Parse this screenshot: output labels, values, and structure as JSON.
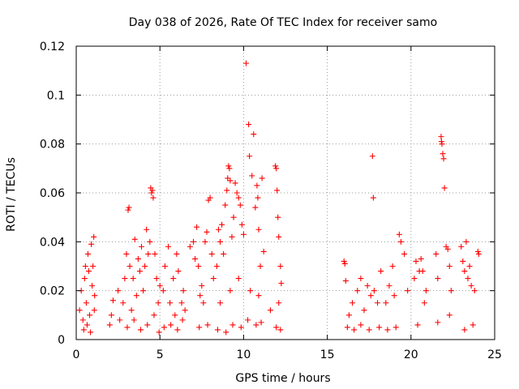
{
  "chart_data": {
    "type": "scatter",
    "title": "Day 038 of 2026, Rate Of TEC Index for receiver samo",
    "xlabel": "GPS time / hours",
    "ylabel": "ROTI / TECUs",
    "xlim": [
      0,
      25
    ],
    "ylim": [
      0,
      0.12
    ],
    "xticks": [
      "0",
      "5",
      "10",
      "15",
      "20",
      "25"
    ],
    "yticks": [
      "0",
      "0.02",
      "0.04",
      "0.06",
      "0.08",
      "0.1",
      "0.12"
    ],
    "grid": true,
    "marker": "plus",
    "color": "#ff0000",
    "series": [
      {
        "points": [
          [
            0.2,
            0.012
          ],
          [
            0.3,
            0.02
          ],
          [
            0.4,
            0.008
          ],
          [
            0.5,
            0.025
          ],
          [
            0.6,
            0.015
          ],
          [
            0.7,
            0.035
          ],
          [
            0.8,
            0.01
          ],
          [
            0.9,
            0.039
          ],
          [
            1.0,
            0.03
          ],
          [
            1.05,
            0.042
          ],
          [
            1.1,
            0.018
          ],
          [
            0.45,
            0.004
          ],
          [
            0.65,
            0.006
          ],
          [
            0.85,
            0.003
          ],
          [
            0.55,
            0.03
          ],
          [
            0.75,
            0.028
          ],
          [
            0.95,
            0.022
          ],
          [
            1.08,
            0.012
          ],
          [
            2.0,
            0.006
          ],
          [
            2.1,
            0.01
          ],
          [
            2.2,
            0.016
          ],
          [
            2.5,
            0.02
          ],
          [
            2.6,
            0.008
          ],
          [
            2.8,
            0.015
          ],
          [
            2.9,
            0.025
          ],
          [
            3.0,
            0.035
          ],
          [
            3.1,
            0.053
          ],
          [
            3.15,
            0.054
          ],
          [
            3.2,
            0.03
          ],
          [
            3.3,
            0.012
          ],
          [
            3.4,
            0.025
          ],
          [
            3.5,
            0.041
          ],
          [
            3.6,
            0.018
          ],
          [
            3.7,
            0.033
          ],
          [
            3.8,
            0.028
          ],
          [
            3.9,
            0.038
          ],
          [
            4.0,
            0.02
          ],
          [
            4.1,
            0.03
          ],
          [
            4.2,
            0.045
          ],
          [
            4.3,
            0.035
          ],
          [
            4.4,
            0.04
          ],
          [
            4.45,
            0.062
          ],
          [
            4.5,
            0.06
          ],
          [
            4.55,
            0.061
          ],
          [
            4.6,
            0.058
          ],
          [
            4.7,
            0.035
          ],
          [
            4.8,
            0.025
          ],
          [
            4.9,
            0.015
          ],
          [
            5.0,
            0.022
          ],
          [
            3.05,
            0.005
          ],
          [
            3.45,
            0.008
          ],
          [
            3.85,
            0.004
          ],
          [
            4.25,
            0.006
          ],
          [
            4.65,
            0.01
          ],
          [
            4.95,
            0.003
          ],
          [
            5.2,
            0.02
          ],
          [
            5.3,
            0.03
          ],
          [
            5.5,
            0.038
          ],
          [
            5.6,
            0.015
          ],
          [
            5.8,
            0.025
          ],
          [
            5.9,
            0.01
          ],
          [
            6.0,
            0.035
          ],
          [
            6.1,
            0.028
          ],
          [
            6.3,
            0.015
          ],
          [
            6.4,
            0.02
          ],
          [
            6.5,
            0.012
          ],
          [
            5.25,
            0.005
          ],
          [
            5.65,
            0.006
          ],
          [
            6.05,
            0.004
          ],
          [
            6.35,
            0.008
          ],
          [
            6.8,
            0.038
          ],
          [
            7.0,
            0.04
          ],
          [
            7.1,
            0.033
          ],
          [
            7.2,
            0.046
          ],
          [
            7.3,
            0.03
          ],
          [
            7.4,
            0.018
          ],
          [
            7.5,
            0.022
          ],
          [
            7.6,
            0.015
          ],
          [
            7.7,
            0.04
          ],
          [
            7.8,
            0.044
          ],
          [
            7.9,
            0.057
          ],
          [
            8.0,
            0.058
          ],
          [
            8.1,
            0.035
          ],
          [
            8.2,
            0.025
          ],
          [
            8.4,
            0.03
          ],
          [
            8.5,
            0.045
          ],
          [
            8.6,
            0.04
          ],
          [
            8.7,
            0.047
          ],
          [
            8.8,
            0.035
          ],
          [
            8.9,
            0.055
          ],
          [
            9.0,
            0.061
          ],
          [
            9.05,
            0.066
          ],
          [
            9.1,
            0.071
          ],
          [
            9.15,
            0.07
          ],
          [
            9.2,
            0.065
          ],
          [
            9.3,
            0.042
          ],
          [
            9.4,
            0.05
          ],
          [
            9.5,
            0.064
          ],
          [
            9.6,
            0.06
          ],
          [
            9.7,
            0.058
          ],
          [
            9.8,
            0.055
          ],
          [
            9.9,
            0.047
          ],
          [
            10.0,
            0.043
          ],
          [
            10.15,
            0.113
          ],
          [
            10.3,
            0.088
          ],
          [
            10.35,
            0.075
          ],
          [
            10.5,
            0.067
          ],
          [
            10.6,
            0.084
          ],
          [
            10.7,
            0.054
          ],
          [
            10.8,
            0.063
          ],
          [
            10.85,
            0.058
          ],
          [
            10.9,
            0.045
          ],
          [
            11.0,
            0.03
          ],
          [
            11.1,
            0.066
          ],
          [
            11.2,
            0.036
          ],
          [
            11.9,
            0.071
          ],
          [
            11.95,
            0.07
          ],
          [
            12.0,
            0.061
          ],
          [
            12.05,
            0.05
          ],
          [
            12.1,
            0.042
          ],
          [
            12.2,
            0.03
          ],
          [
            12.25,
            0.023
          ],
          [
            7.35,
            0.005
          ],
          [
            7.85,
            0.006
          ],
          [
            8.45,
            0.004
          ],
          [
            8.95,
            0.003
          ],
          [
            9.35,
            0.006
          ],
          [
            9.85,
            0.005
          ],
          [
            10.25,
            0.008
          ],
          [
            10.75,
            0.006
          ],
          [
            11.05,
            0.007
          ],
          [
            11.95,
            0.005
          ],
          [
            12.2,
            0.004
          ],
          [
            8.6,
            0.015
          ],
          [
            9.2,
            0.02
          ],
          [
            9.7,
            0.025
          ],
          [
            10.4,
            0.02
          ],
          [
            10.9,
            0.018
          ],
          [
            11.6,
            0.012
          ],
          [
            12.1,
            0.015
          ],
          [
            16.0,
            0.032
          ],
          [
            16.05,
            0.031
          ],
          [
            16.1,
            0.024
          ],
          [
            16.3,
            0.01
          ],
          [
            16.5,
            0.015
          ],
          [
            16.8,
            0.02
          ],
          [
            17.0,
            0.025
          ],
          [
            17.2,
            0.012
          ],
          [
            17.4,
            0.022
          ],
          [
            17.6,
            0.018
          ],
          [
            17.7,
            0.075
          ],
          [
            17.75,
            0.058
          ],
          [
            17.8,
            0.02
          ],
          [
            18.0,
            0.015
          ],
          [
            18.2,
            0.028
          ],
          [
            16.2,
            0.005
          ],
          [
            16.6,
            0.004
          ],
          [
            17.0,
            0.006
          ],
          [
            17.5,
            0.004
          ],
          [
            18.1,
            0.005
          ],
          [
            18.5,
            0.015
          ],
          [
            18.7,
            0.022
          ],
          [
            18.9,
            0.03
          ],
          [
            19.0,
            0.018
          ],
          [
            19.3,
            0.043
          ],
          [
            19.4,
            0.04
          ],
          [
            19.6,
            0.035
          ],
          [
            19.8,
            0.02
          ],
          [
            20.2,
            0.025
          ],
          [
            20.3,
            0.032
          ],
          [
            20.5,
            0.028
          ],
          [
            20.6,
            0.033
          ],
          [
            20.7,
            0.028
          ],
          [
            20.8,
            0.015
          ],
          [
            20.9,
            0.02
          ],
          [
            21.5,
            0.035
          ],
          [
            21.6,
            0.025
          ],
          [
            21.8,
            0.083
          ],
          [
            21.82,
            0.081
          ],
          [
            21.85,
            0.08
          ],
          [
            21.9,
            0.076
          ],
          [
            21.95,
            0.074
          ],
          [
            22.0,
            0.062
          ],
          [
            22.1,
            0.038
          ],
          [
            22.2,
            0.037
          ],
          [
            22.3,
            0.03
          ],
          [
            22.4,
            0.02
          ],
          [
            23.0,
            0.038
          ],
          [
            23.1,
            0.032
          ],
          [
            23.2,
            0.028
          ],
          [
            23.3,
            0.04
          ],
          [
            23.4,
            0.025
          ],
          [
            23.5,
            0.03
          ],
          [
            23.6,
            0.022
          ],
          [
            23.8,
            0.02
          ],
          [
            24.0,
            0.036
          ],
          [
            24.05,
            0.035
          ],
          [
            18.6,
            0.004
          ],
          [
            19.1,
            0.005
          ],
          [
            20.4,
            0.006
          ],
          [
            21.6,
            0.007
          ],
          [
            22.3,
            0.01
          ],
          [
            23.2,
            0.004
          ],
          [
            23.7,
            0.006
          ]
        ]
      }
    ]
  }
}
